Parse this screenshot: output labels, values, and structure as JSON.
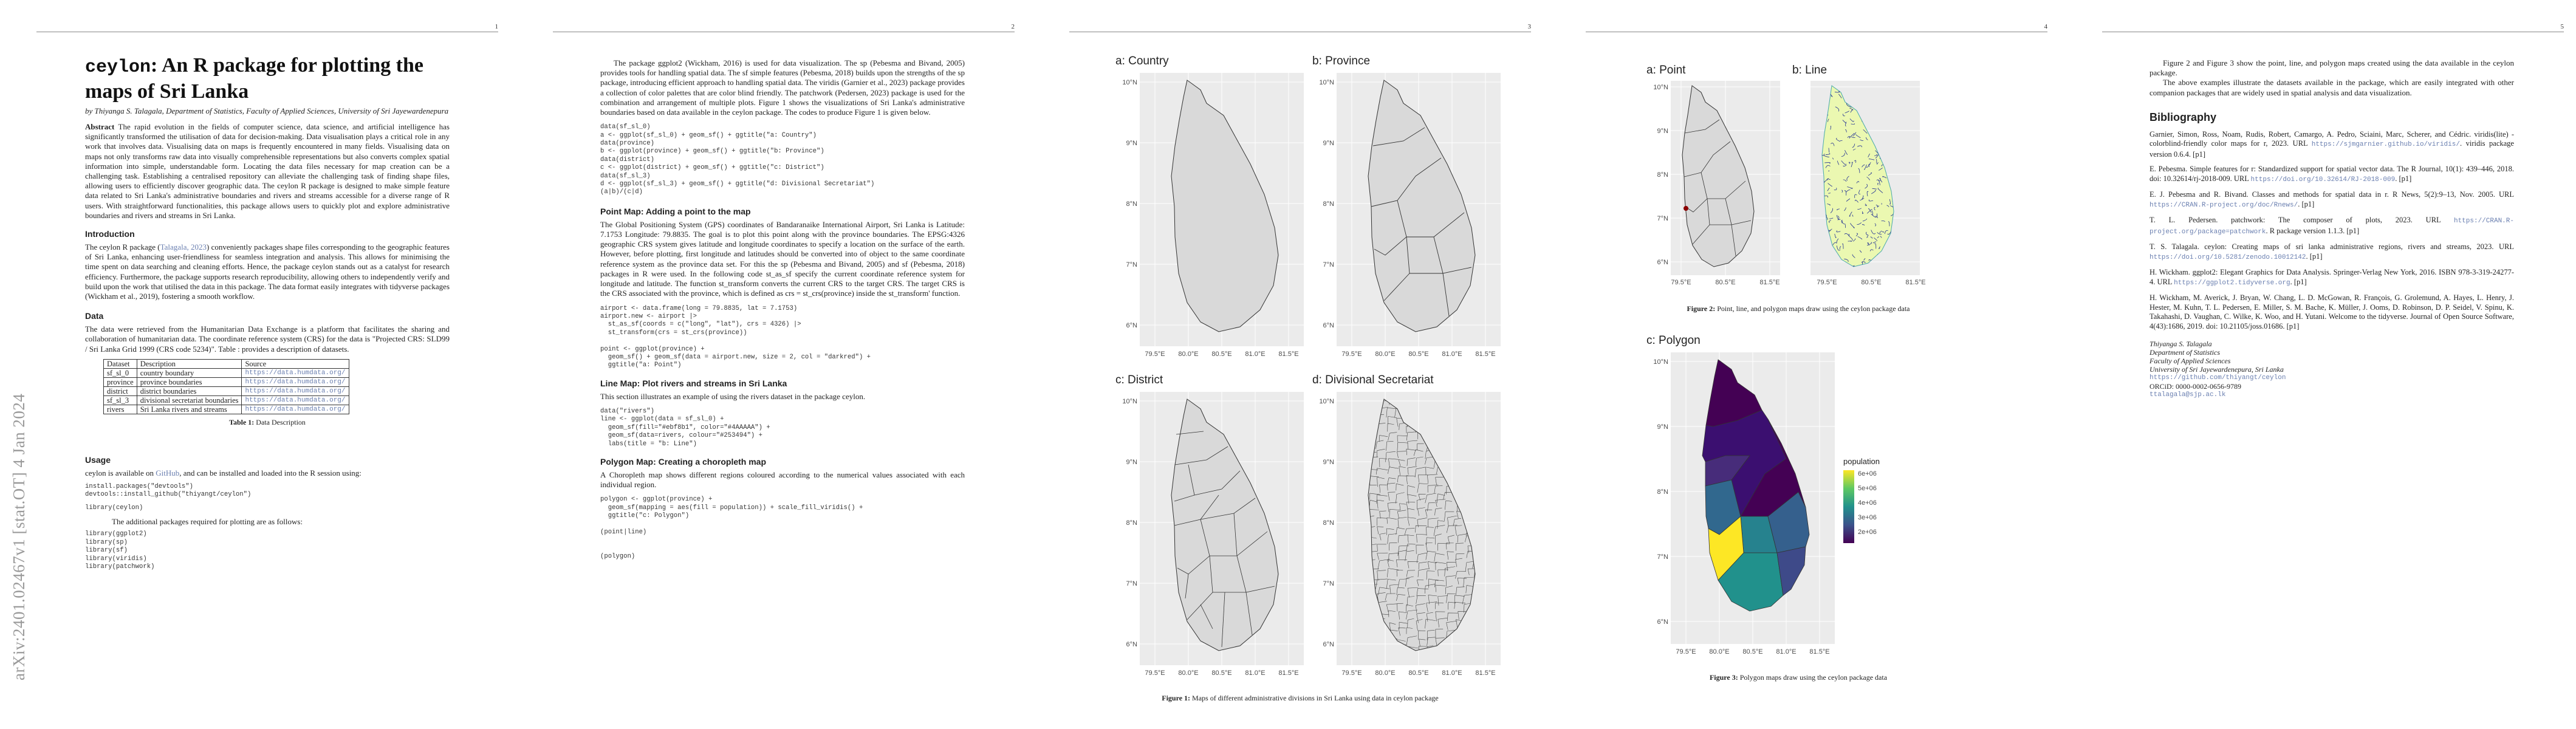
{
  "arxiv_stamp": "arXiv:2401.02467v1  [stat.OT]  4 Jan 2024",
  "page_numbers": [
    "1",
    "2",
    "3",
    "4",
    "5"
  ],
  "page1": {
    "title_code": "ceylon",
    "title_rest": ": An R package for plotting the maps of Sri Lanka",
    "authors": "by Thiyanga S. Talagala, Department of Statistics, Faculty of Applied Sciences, University of Sri Jayewardenepura",
    "abstract_label": "Abstract",
    "abstract": "The rapid evolution in the fields of computer science, data science, and artificial intelligence has significantly transformed the utilisation of data for decision-making. Data visualisation plays a critical role in any work that involves data. Visualising data on maps is frequently encountered in many fields. Visualising data on maps not only transforms raw data into visually comprehensible representations but also converts complex spatial information into simple, understandable form. Locating the data files necessary for map creation can be a challenging task. Establishing a centralised repository can alleviate the challenging task of finding shape files, allowing users to efficiently discover geographic data. The ceylon R package is designed to make simple feature data related to Sri Lanka's administrative boundaries and rivers and streams accessible for a diverse range of R users. With straightforward functionalities, this package allows users to quickly plot and explore administrative boundaries and rivers and streams in Sri Lanka.",
    "intro_heading": "Introduction",
    "intro_pre": "The ceylon R package (",
    "intro_cite": "Talagala, 2023",
    "intro": ") conveniently packages shape files corresponding to the geographic features of Sri Lanka, enhancing user-friendliness for seamless integration and analysis. This allows for minimising the time spent on data searching and cleaning efforts. Hence, the package ceylon stands out as a catalyst for research efficiency. Furthermore, the package supports research reproducibility, allowing others to independently verify and build upon the work that utilised the data in this package. The data format easily integrates with tidyverse packages (Wickham et al., 2019), fostering a smooth workflow.",
    "data_heading": "Data",
    "data_text": "The data were retrieved from the Humanitarian Data Exchange is a platform that facilitates the sharing and collaboration of humanitarian data. The coordinate reference system (CRS) for the data is \"Projected CRS: SLD99 / Sri Lanka Grid 1999 (CRS code 5234)\". Table : provides a description of datasets.",
    "table_header": [
      "Dataset",
      "Description",
      "Source"
    ],
    "table_rows": [
      [
        "sf_sl_0",
        "country boundary",
        "https://data.humdata.org/"
      ],
      [
        "province",
        "province boundaries",
        "https://data.humdata.org/"
      ],
      [
        "district",
        "district boundaries",
        "https://data.humdata.org/"
      ],
      [
        "sf_sl_3",
        "divisional secretariat boundaries",
        "https://data.humdata.org/"
      ],
      [
        "rivers",
        "Sri Lanka rivers and streams",
        "https://data.humdata.org/"
      ]
    ],
    "table_caption_label": "Table 1:",
    "table_caption": " Data Description",
    "usage_heading": "Usage",
    "usage_pre": "ceylon is available on ",
    "usage_link": "GitHub",
    "usage_text": ", and can be installed and loaded into the R session using:",
    "code_install": "install.packages(\"devtools\")\ndevtools::install_github(\"thiyangt/ceylon\")",
    "code_library": "library(ceylon)",
    "additional": "The additional packages required for plotting are as follows:",
    "code_packages": "library(ggplot2)\nlibrary(sp)\nlibrary(sf)\nlibrary(viridis)\nlibrary(patchwork)"
  },
  "page2": {
    "intro_para": "The package ggplot2 (Wickham, 2016) is used for data visualization. The sp (Pebesma and Bivand, 2005) provides tools for handling spatial data. The sf simple features (Pebesma, 2018) builds upon the strengths of the sp package, introducing efficient approach to handling spatial data. The viridis (Garnier et al., 2023) package provides a collection of color palettes that are color blind friendly. The patchwork (Pedersen, 2023) package is used for the combination and arrangement of multiple plots. Figure 1 shows the visualizations of Sri Lanka's administrative boundaries based on data available in the ceylon package. The codes to produce Figure 1 is given below.",
    "code1": "data(sf_sl_0)\na <- ggplot(sf_sl_0) + geom_sf() + ggtitle(\"a: Country\")\ndata(province)\nb <- ggplot(province) + geom_sf() + ggtitle(\"b: Province\")\ndata(district)\nc <- ggplot(district) + geom_sf() + ggtitle(\"c: District\")\ndata(sf_sl_3)\nd <- ggplot(sf_sl_3) + geom_sf() + ggtitle(\"d: Divisional Secretariat\")\n(a|b)/(c|d)",
    "point_heading": "Point Map: Adding a point to the map",
    "point_text": "The Global Positioning System (GPS) coordinates of Bandaranaike International Airport, Sri Lanka is Latitude: 7.1753 Longitude: 79.8835. The goal is to plot this point along with the province boundaries. The EPSG:4326 geographic CRS system gives latitude and longitude coordinates to specify a location on the surface of the earth. However, before plotting, first longitude and latitudes should be converted into of object to the same coordinate reference system as the province data set. For this the sp (Pebesma and Bivand, 2005) and sf (Pebesma, 2018) packages in R were used. In the following code st_as_sf specify the current coordinate reference system for longitude and latitude. The function st_transform converts the current CRS to the target CRS. The target CRS is the CRS associated with the province, which is defined as crs = st_crs(province) inside the st_transform' function.",
    "code2": "airport <- data.frame(long = 79.8835, lat = 7.1753)\nairport.new <- airport |>\n  st_as_sf(coords = c(\"long\", \"lat\"), crs = 4326) |>\n  st_transform(crs = st_crs(province))\n\npoint <- ggplot(province) +\n  geom_sf() + geom_sf(data = airport.new, size = 2, col = \"darkred\") +\n  ggtitle(\"a: Point\")",
    "line_heading": "Line Map: Plot rivers and streams in Sri Lanka",
    "line_text": "This section illustrates an example of using the rivers dataset in the package ceylon.",
    "code3": "data(\"rivers\")\nline <- ggplot(data = sf_sl_0) +\n  geom_sf(fill=\"#ebf8b1\", color=\"#4AAAAA\") +\n  geom_sf(data=rivers, colour=\"#253494\") +\n  labs(title = \"b: Line\")",
    "polygon_heading": "Polygon Map: Creating a choropleth map",
    "polygon_text": "A Choropleth map shows different regions coloured according to the numerical values associated with each individual region.",
    "code4": "polygon <- ggplot(province) +\n  geom_sf(mapping = aes(fill = population)) + scale_fill_viridis() +\n  ggtitle(\"c: Polygon\")\n\n(point|line)\n\n\n(polygon)"
  },
  "page3": {
    "panels": [
      "a: Country",
      "b: Province",
      "c: District",
      "d: Divisional Secretariat"
    ],
    "lat_ticks": [
      "10°N",
      "9°N",
      "8°N",
      "7°N",
      "6°N"
    ],
    "lon_ticks": [
      "79.5°E",
      "80.0°E",
      "80.5°E",
      "81.0°E",
      "81.5°E"
    ],
    "caption_label": "Figure 1:",
    "caption": " Maps of different administrative divisions in Sri Lanka using data in ceylon package"
  },
  "page4": {
    "panels": [
      "a: Point",
      "b: Line",
      "c: Polygon"
    ],
    "lat_ticks": [
      "10°N",
      "9°N",
      "8°N",
      "7°N",
      "6°N"
    ],
    "lon_ticks_small": [
      "79.5°E",
      "80.5°E",
      "81.5°E"
    ],
    "lon_ticks_small2": [
      "79.5°E 81.0°E 81.5°E",
      "79.5°E 80.5°E81.5°E"
    ],
    "lon_ticks": [
      "79.5°E",
      "80.0°E",
      "80.5°E",
      "81.0°E",
      "81.5°E"
    ],
    "caption2_label": "Figure 2:",
    "caption2": " Point, line, and polygon maps draw using the ceylon package data",
    "caption3_label": "Figure 3:",
    "caption3": " Polygon maps draw using the ceylon package data",
    "legend_title": "population",
    "legend_labels": [
      "6e+06",
      "5e+06",
      "4e+06",
      "3e+06",
      "2e+06"
    ]
  },
  "page5": {
    "p1": "Figure 2 and Figure 3 show the point, line, and polygon maps created using the data available in the ceylon package.",
    "p2": "The above examples illustrate the datasets available in the package, which are easily integrated with other companion packages that are widely used in spatial analysis and data visualization.",
    "bib_heading": "Bibliography",
    "bib": [
      {
        "text": "Garnier, Simon, Ross, Noam, Rudis, Robert, Camargo, A. Pedro, Sciaini, Marc, Scherer, and Cédric. viridis(lite) - colorblind-friendly color maps for r, 2023. URL ",
        "url": "https://sjmgarnier.github.io/viridis/",
        "tail": ". viridis package version 0.6.4. [p1]"
      },
      {
        "text": "E. Pebesma. Simple features for r: Standardized support for spatial vector data. The R Journal, 10(1): 439–446, 2018. doi: 10.32614/rj-2018-009. URL ",
        "url": "https://doi.org/10.32614/RJ-2018-009",
        "tail": ". [p1]"
      },
      {
        "text": "E. J. Pebesma and R. Bivand. Classes and methods for spatial data in r. R News, 5(2):9–13, Nov. 2005. URL ",
        "url": "https://CRAN.R-project.org/doc/Rnews/",
        "tail": ". [p1]"
      },
      {
        "text": "T. L. Pedersen. patchwork: The composer of plots, 2023. URL ",
        "url": "https://CRAN.R-project.org/package=patchwork",
        "tail": ". R package version 1.1.3. [p1]"
      },
      {
        "text": "T. S. Talagala. ceylon: Creating maps of sri lanka administrative regions, rivers and streams, 2023. URL ",
        "url": "https://doi.org/10.5281/zenodo.10012142",
        "tail": ". [p1]"
      },
      {
        "text": "H. Wickham. ggplot2: Elegant Graphics for Data Analysis. Springer-Verlag New York, 2016. ISBN 978-3-319-24277-4. URL ",
        "url": "https://ggplot2.tidyverse.org",
        "tail": ". [p1]"
      },
      {
        "text": "H. Wickham, M. Averick, J. Bryan, W. Chang, L. D. McGowan, R. François, G. Grolemund, A. Hayes, L. Henry, J. Hester, M. Kuhn, T. L. Pedersen, E. Miller, S. M. Bache, K. Müller, J. Ooms, D. Robinson, D. P. Seidel, V. Spinu, K. Takahashi, D. Vaughan, C. Wilke, K. Woo, and H. Yutani. Welcome to the tidyverse. Journal of Open Source Software, 4(43):1686, 2019. doi: 10.21105/joss.01686. [p1]",
        "url": "",
        "tail": ""
      }
    ],
    "addr": [
      "Thiyanga S. Talagala",
      "Department of Statistics",
      "Faculty of Applied Sciences",
      "University of Sri Jayewardenepura, Sri Lanka"
    ],
    "addr_links": [
      "https://github.com/thiyangt/ceylon",
      "ORCiD: 0000-0002-0656-9789",
      "ttalagala@sjp.ac.lk"
    ]
  },
  "colors": {
    "panel_bg": "#ebebeb",
    "land": "#d9d9d9",
    "river": "#253494",
    "line_fill": "#ebf8b1",
    "point": "#8b0000",
    "link": "#6a7fb0"
  }
}
